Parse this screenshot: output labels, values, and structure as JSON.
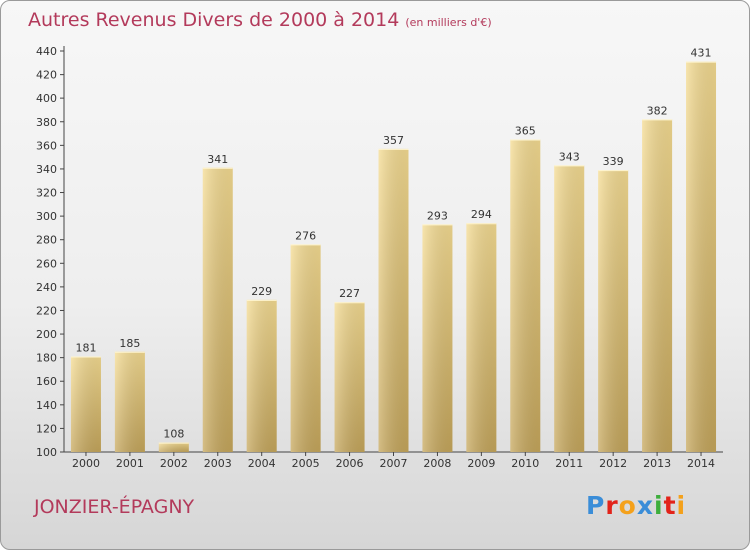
{
  "chart_data": {
    "type": "bar",
    "title": "Autres Revenus Divers de 2000 à 2014",
    "subtitle": "(en milliers d'€)",
    "categories": [
      "2000",
      "2001",
      "2002",
      "2003",
      "2004",
      "2005",
      "2006",
      "2007",
      "2008",
      "2009",
      "2010",
      "2011",
      "2012",
      "2013",
      "2014"
    ],
    "values": [
      181,
      185,
      108,
      341,
      229,
      276,
      227,
      357,
      293,
      294,
      365,
      343,
      339,
      382,
      431
    ],
    "ylim": [
      100,
      440
    ],
    "yticks": [
      100,
      120,
      140,
      160,
      180,
      200,
      220,
      240,
      260,
      280,
      300,
      320,
      340,
      360,
      380,
      400,
      420,
      440
    ],
    "grid": false,
    "bar_color": "#e8cf86"
  },
  "place_name": "JONZIER-ÉPAGNY",
  "logo": {
    "letters": [
      "P",
      "r",
      "o",
      "x",
      "i",
      "t",
      "i"
    ],
    "colors": [
      "#3a8dd8",
      "#e2231a",
      "#f4a11b",
      "#3a8dd8",
      "#3eae3c",
      "#e2231a",
      "#f4a11b"
    ]
  }
}
